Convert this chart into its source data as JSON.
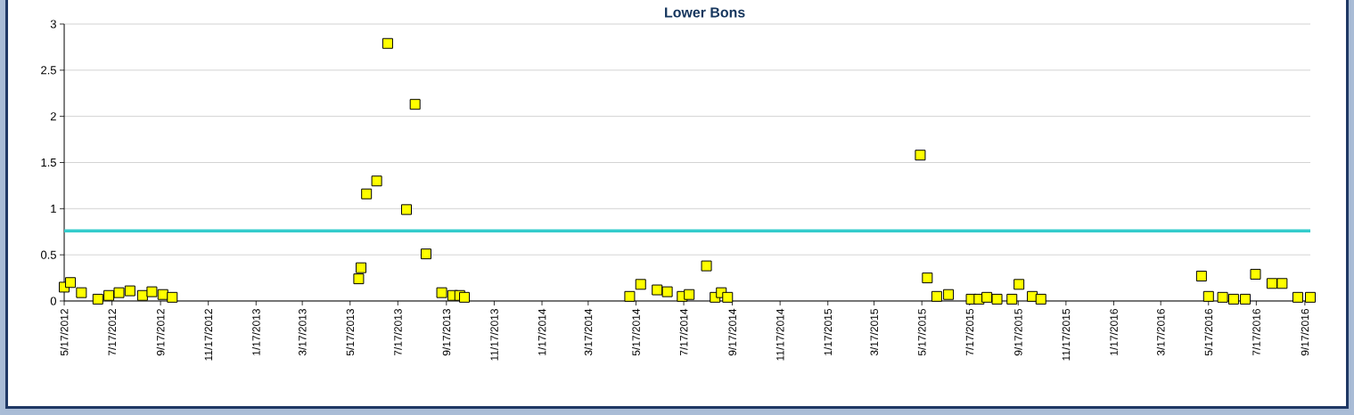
{
  "chart_data": {
    "type": "scatter",
    "title": "Lower Bons",
    "x": [
      "2012-05-17",
      "2012-05-25",
      "2012-06-08",
      "2012-06-29",
      "2012-07-13",
      "2012-07-26",
      "2012-08-09",
      "2012-08-25",
      "2012-09-06",
      "2012-09-20",
      "2012-10-02",
      "2013-05-28",
      "2013-05-31",
      "2013-06-07",
      "2013-06-20",
      "2013-07-04",
      "2013-07-28",
      "2013-08-08",
      "2013-08-22",
      "2013-09-11",
      "2013-09-25",
      "2013-10-04",
      "2013-10-10",
      "2014-05-09",
      "2014-05-23",
      "2014-06-13",
      "2014-06-26",
      "2014-07-15",
      "2014-07-24",
      "2014-08-15",
      "2014-08-26",
      "2014-09-03",
      "2014-09-11",
      "2015-05-15",
      "2015-05-24",
      "2015-06-05",
      "2015-06-20",
      "2015-07-19",
      "2015-07-29",
      "2015-08-08",
      "2015-08-21",
      "2015-09-09",
      "2015-09-18",
      "2015-10-05",
      "2015-10-16",
      "2016-05-08",
      "2016-05-17",
      "2016-06-04",
      "2016-06-18",
      "2016-07-03",
      "2016-07-16",
      "2016-08-06",
      "2016-08-19",
      "2016-09-08",
      "2016-09-24"
    ],
    "values": [
      0.15,
      0.2,
      0.09,
      0.02,
      0.06,
      0.09,
      0.11,
      0.06,
      0.1,
      0.07,
      0.04,
      0.24,
      0.36,
      1.16,
      1.3,
      2.79,
      0.99,
      2.13,
      0.51,
      0.09,
      0.06,
      0.06,
      0.04,
      0.05,
      0.18,
      0.12,
      0.1,
      0.05,
      0.07,
      0.38,
      0.04,
      0.09,
      0.04,
      1.58,
      0.25,
      0.05,
      0.07,
      0.02,
      0.02,
      0.04,
      0.02,
      0.02,
      0.18,
      0.05,
      0.02,
      0.27,
      0.05,
      0.04,
      0.02,
      0.02,
      0.29,
      0.19,
      0.19,
      0.04,
      0.04
    ],
    "color": "#ffff00",
    "marker": "square",
    "xlim": [
      "2012-05-17",
      "2016-09-24"
    ],
    "xticks": [
      {
        "value": "2012-05-17",
        "label": "5/17/2012"
      },
      {
        "value": "2012-07-17",
        "label": "7/17/2012"
      },
      {
        "value": "2012-09-17",
        "label": "9/17/2012"
      },
      {
        "value": "2012-11-17",
        "label": "11/17/2012"
      },
      {
        "value": "2013-01-17",
        "label": "1/17/2013"
      },
      {
        "value": "2013-03-17",
        "label": "3/17/2013"
      },
      {
        "value": "2013-05-17",
        "label": "5/17/2013"
      },
      {
        "value": "2013-07-17",
        "label": "7/17/2013"
      },
      {
        "value": "2013-09-17",
        "label": "9/17/2013"
      },
      {
        "value": "2013-11-17",
        "label": "11/17/2013"
      },
      {
        "value": "2014-01-17",
        "label": "1/17/2014"
      },
      {
        "value": "2014-03-17",
        "label": "3/17/2014"
      },
      {
        "value": "2014-05-17",
        "label": "5/17/2014"
      },
      {
        "value": "2014-07-17",
        "label": "7/17/2014"
      },
      {
        "value": "2014-09-17",
        "label": "9/17/2014"
      },
      {
        "value": "2014-11-17",
        "label": "11/17/2014"
      },
      {
        "value": "2015-01-17",
        "label": "1/17/2015"
      },
      {
        "value": "2015-03-17",
        "label": "3/17/2015"
      },
      {
        "value": "2015-05-17",
        "label": "5/17/2015"
      },
      {
        "value": "2015-07-17",
        "label": "7/17/2015"
      },
      {
        "value": "2015-09-17",
        "label": "9/17/2015"
      },
      {
        "value": "2015-11-17",
        "label": "11/17/2015"
      },
      {
        "value": "2016-01-17",
        "label": "1/17/2016"
      },
      {
        "value": "2016-03-17",
        "label": "3/17/2016"
      },
      {
        "value": "2016-05-17",
        "label": "5/17/2016"
      },
      {
        "value": "2016-07-17",
        "label": "7/17/2016"
      },
      {
        "value": "2016-09-17",
        "label": "9/17/2016"
      }
    ],
    "ylim": [
      0,
      3
    ],
    "yticks": [
      0,
      0.5,
      1,
      1.5,
      2,
      2.5,
      3
    ],
    "grid": "y",
    "ref_lines": [
      {
        "axis": "y",
        "value": 0.76,
        "color": "#33cccc"
      }
    ]
  }
}
